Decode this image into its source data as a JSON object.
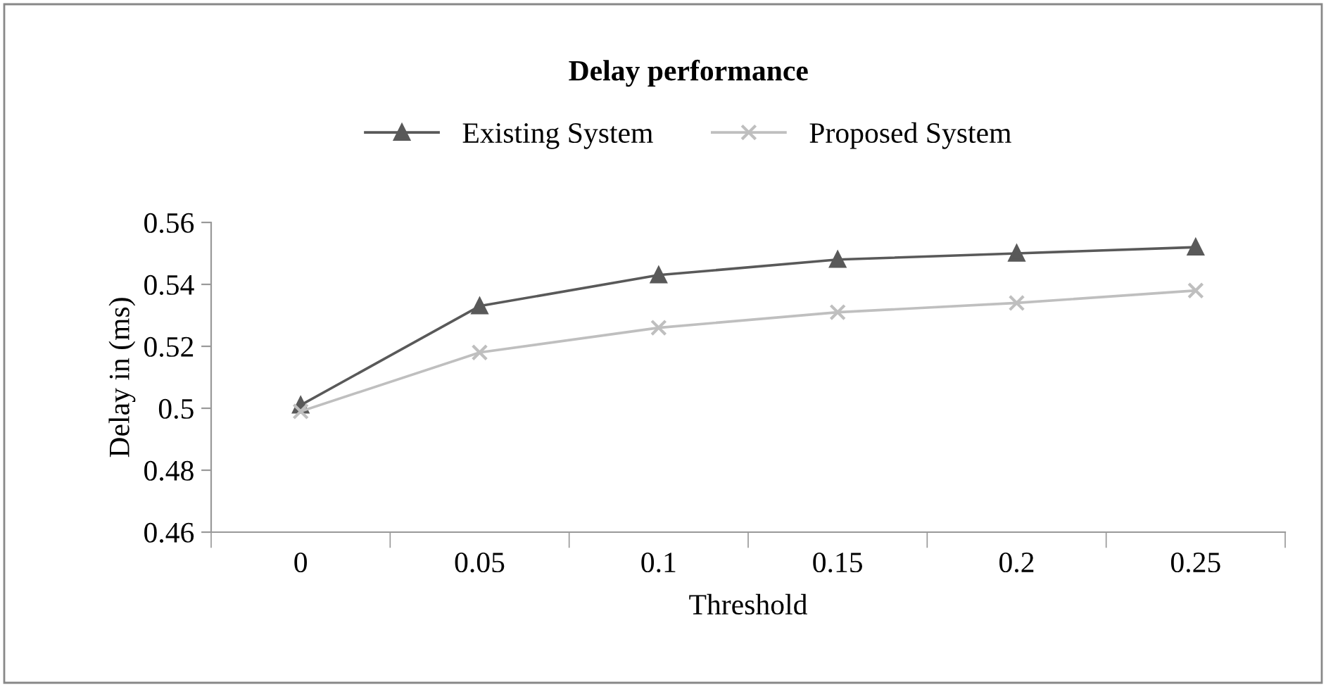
{
  "chart_data": {
    "type": "line",
    "title": "Delay performance",
    "xlabel": "Threshold",
    "ylabel": "Delay in (ms)",
    "categories": [
      "0",
      "0.05",
      "0.1",
      "0.15",
      "0.2",
      "0.25"
    ],
    "series": [
      {
        "name": "Existing System",
        "color": "#595959",
        "marker": "triangle",
        "values": [
          0.501,
          0.533,
          0.543,
          0.548,
          0.55,
          0.552
        ]
      },
      {
        "name": "Proposed System",
        "color": "#bfbfbf",
        "marker": "cross",
        "values": [
          0.499,
          0.518,
          0.526,
          0.531,
          0.534,
          0.538
        ]
      }
    ],
    "ylim": [
      0.46,
      0.56
    ],
    "yticks": [
      0.46,
      0.48,
      0.5,
      0.52,
      0.54,
      0.56
    ],
    "grid": false,
    "legend": "top"
  }
}
